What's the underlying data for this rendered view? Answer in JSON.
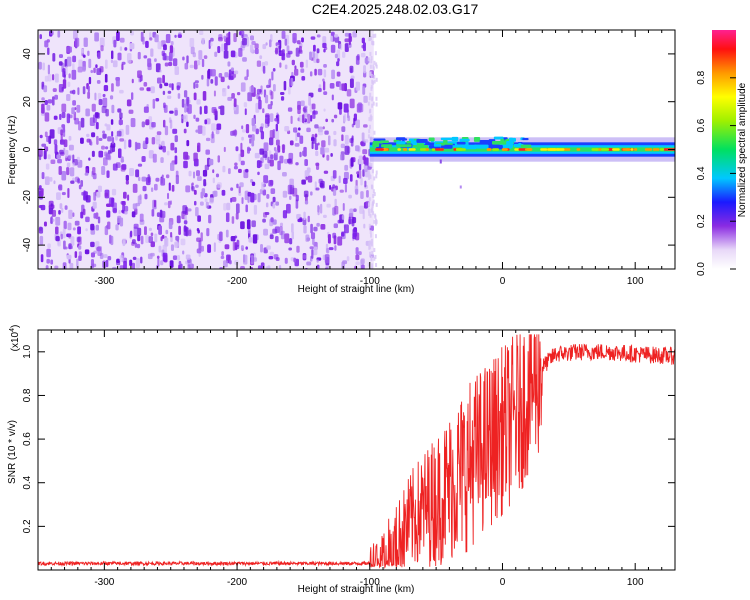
{
  "title": "C2E4.2025.248.02.03.G17",
  "chart_data": [
    {
      "type": "heatmap",
      "name": "spectrogram",
      "xlabel": "Height of straight line (km)",
      "ylabel": "Frequency (Hz)",
      "xlim": [
        -350,
        130
      ],
      "ylim": [
        -50,
        50
      ],
      "xticks": [
        -300,
        -200,
        -100,
        0,
        100
      ],
      "yticks": [
        -40,
        -20,
        0,
        20,
        40
      ],
      "noise_region_x": [
        -350,
        -100
      ],
      "signal_region_x": [
        -100,
        130
      ],
      "signal_center_frequency": 0,
      "signal_band_halfwidth_hz": 3,
      "colorbar": {
        "label": "Normalized spectral amplitude",
        "range": [
          0.0,
          1.0
        ],
        "ticks": [
          0.0,
          0.2,
          0.4,
          0.6,
          0.8
        ]
      }
    },
    {
      "type": "line",
      "name": "snr",
      "xlabel": "Height of straight line (km)",
      "ylabel": "SNR (10 * v/v)",
      "yscale_label_base": "(x10",
      "yscale_label_exp": "4",
      "yscale_label_close": ")",
      "xlim": [
        -350,
        130
      ],
      "ylim": [
        0,
        1.1
      ],
      "xticks": [
        -300,
        -200,
        -100,
        0,
        100
      ],
      "yticks": [
        0.2,
        0.4,
        0.6,
        0.8,
        1.0
      ],
      "color": "#ee2222",
      "trend": {
        "x": [
          -350,
          -100,
          -90,
          -80,
          -70,
          -60,
          -50,
          -40,
          -30,
          -20,
          -10,
          0,
          10,
          20,
          30,
          40,
          60,
          80,
          100,
          130
        ],
        "y": [
          0.03,
          0.03,
          0.05,
          0.12,
          0.22,
          0.28,
          0.32,
          0.38,
          0.45,
          0.52,
          0.58,
          0.64,
          0.7,
          0.82,
          0.93,
          0.99,
          1.0,
          1.0,
          0.99,
          0.98
        ]
      }
    }
  ]
}
